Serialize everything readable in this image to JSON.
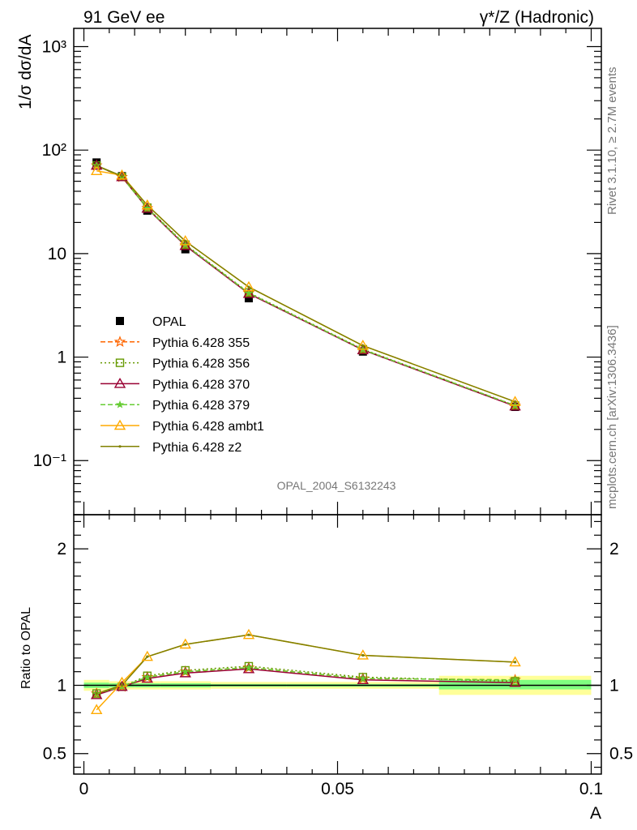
{
  "header": {
    "left": "91 GeV ee",
    "right": "γ*/Z (Hadronic)"
  },
  "side_labels": {
    "rivet": "Rivet 3.1.10, ≥ 2.7M events",
    "source": "mcplots.cern.ch [arXiv:1306.3436]"
  },
  "colors": {
    "opal": "#000000",
    "p355": "#ff6600",
    "p356": "#669900",
    "p370": "#990033",
    "p379": "#66cc33",
    "ambt1": "#ffaa00",
    "z2": "#808000",
    "band_inner": "#80ff80",
    "band_outer": "#ffff99"
  },
  "chart_data": [
    {
      "type": "line",
      "panel": "main",
      "ylabel": "1/σ dσ/dA",
      "xlabel": "",
      "annotation": "OPAL_2004_S6132243",
      "yscale": "log",
      "xlim": [
        -0.002,
        0.102
      ],
      "ylim": [
        0.03,
        1500
      ],
      "ytick_labels": [
        "10⁻¹",
        "1",
        "10",
        "10²",
        "10³"
      ],
      "ytick_values": [
        0.1,
        1,
        10,
        100,
        1000
      ],
      "x": [
        0.0025,
        0.0075,
        0.0125,
        0.02,
        0.0325,
        0.055,
        0.085
      ],
      "legend_position": "lower-left",
      "series": [
        {
          "key": "opal",
          "name": "OPAL",
          "style": "square",
          "values": [
            76,
            56,
            26,
            11,
            3.7,
            1.13,
            0.33
          ]
        },
        {
          "key": "p355",
          "name": "Pythia 6.428 355",
          "style": "star-dashed",
          "values": [
            71,
            55,
            27.5,
            12.1,
            4.15,
            1.18,
            0.34
          ]
        },
        {
          "key": "p356",
          "name": "Pythia 6.428 356",
          "style": "square-dotted",
          "values": [
            71,
            55,
            27.8,
            12.2,
            4.2,
            1.19,
            0.34
          ]
        },
        {
          "key": "p370",
          "name": "Pythia 6.428 370",
          "style": "triangle-solid",
          "values": [
            71,
            55,
            27.3,
            11.9,
            4.1,
            1.17,
            0.335
          ]
        },
        {
          "key": "p379",
          "name": "Pythia 6.428 379",
          "style": "star-dashed",
          "values": [
            71,
            55,
            27.5,
            12.1,
            4.15,
            1.18,
            0.34
          ]
        },
        {
          "key": "ambt1",
          "name": "Pythia 6.428 ambt1",
          "style": "triangle-solid",
          "values": [
            63,
            57,
            29.3,
            13.2,
            4.75,
            1.29,
            0.37
          ]
        },
        {
          "key": "z2",
          "name": "Pythia 6.428 z2",
          "style": "dot-solid",
          "values": [
            71,
            56,
            29.3,
            13.2,
            4.75,
            1.29,
            0.37
          ]
        }
      ]
    },
    {
      "type": "line",
      "panel": "ratio",
      "ylabel": "Ratio to OPAL",
      "xlabel": "A",
      "xlim": [
        -0.002,
        0.102
      ],
      "ylim": [
        0.35,
        2.25
      ],
      "xtick_labels": [
        "0",
        "0.05",
        "0.1"
      ],
      "xtick_values": [
        0,
        0.05,
        0.1
      ],
      "ytick_labels": [
        "0.5",
        "1",
        "2"
      ],
      "ytick_values": [
        0.5,
        1,
        2
      ],
      "x": [
        0.0025,
        0.0075,
        0.0125,
        0.02,
        0.0325,
        0.055,
        0.085
      ],
      "bands": [
        {
          "x0": 0.0,
          "x1": 0.005,
          "inner": [
            0.98,
            1.02
          ],
          "outer": [
            0.96,
            1.04
          ]
        },
        {
          "x0": 0.005,
          "x1": 0.01,
          "inner": [
            0.985,
            1.015
          ],
          "outer": [
            0.97,
            1.03
          ]
        },
        {
          "x0": 0.01,
          "x1": 0.015,
          "inner": [
            0.985,
            1.015
          ],
          "outer": [
            0.97,
            1.03
          ]
        },
        {
          "x0": 0.015,
          "x1": 0.025,
          "inner": [
            0.985,
            1.015
          ],
          "outer": [
            0.97,
            1.03
          ]
        },
        {
          "x0": 0.025,
          "x1": 0.04,
          "inner": [
            0.99,
            1.01
          ],
          "outer": [
            0.975,
            1.025
          ]
        },
        {
          "x0": 0.04,
          "x1": 0.07,
          "inner": [
            0.99,
            1.01
          ],
          "outer": [
            0.975,
            1.025
          ]
        },
        {
          "x0": 0.07,
          "x1": 0.1,
          "inner": [
            0.97,
            1.04
          ],
          "outer": [
            0.93,
            1.07
          ]
        }
      ],
      "series": [
        {
          "key": "p355",
          "values": [
            0.94,
            0.99,
            1.06,
            1.1,
            1.13,
            1.05,
            1.04
          ]
        },
        {
          "key": "p356",
          "values": [
            0.94,
            0.99,
            1.07,
            1.11,
            1.14,
            1.06,
            1.03
          ]
        },
        {
          "key": "p370",
          "values": [
            0.93,
            0.99,
            1.05,
            1.09,
            1.12,
            1.04,
            1.02
          ]
        },
        {
          "key": "p379",
          "values": [
            0.94,
            0.99,
            1.06,
            1.1,
            1.13,
            1.05,
            1.04
          ]
        },
        {
          "key": "ambt1",
          "values": [
            0.82,
            1.02,
            1.21,
            1.3,
            1.37,
            1.22,
            1.17
          ]
        },
        {
          "key": "z2",
          "values": [
            0.94,
            1.0,
            1.21,
            1.3,
            1.37,
            1.22,
            1.17
          ]
        }
      ]
    }
  ]
}
